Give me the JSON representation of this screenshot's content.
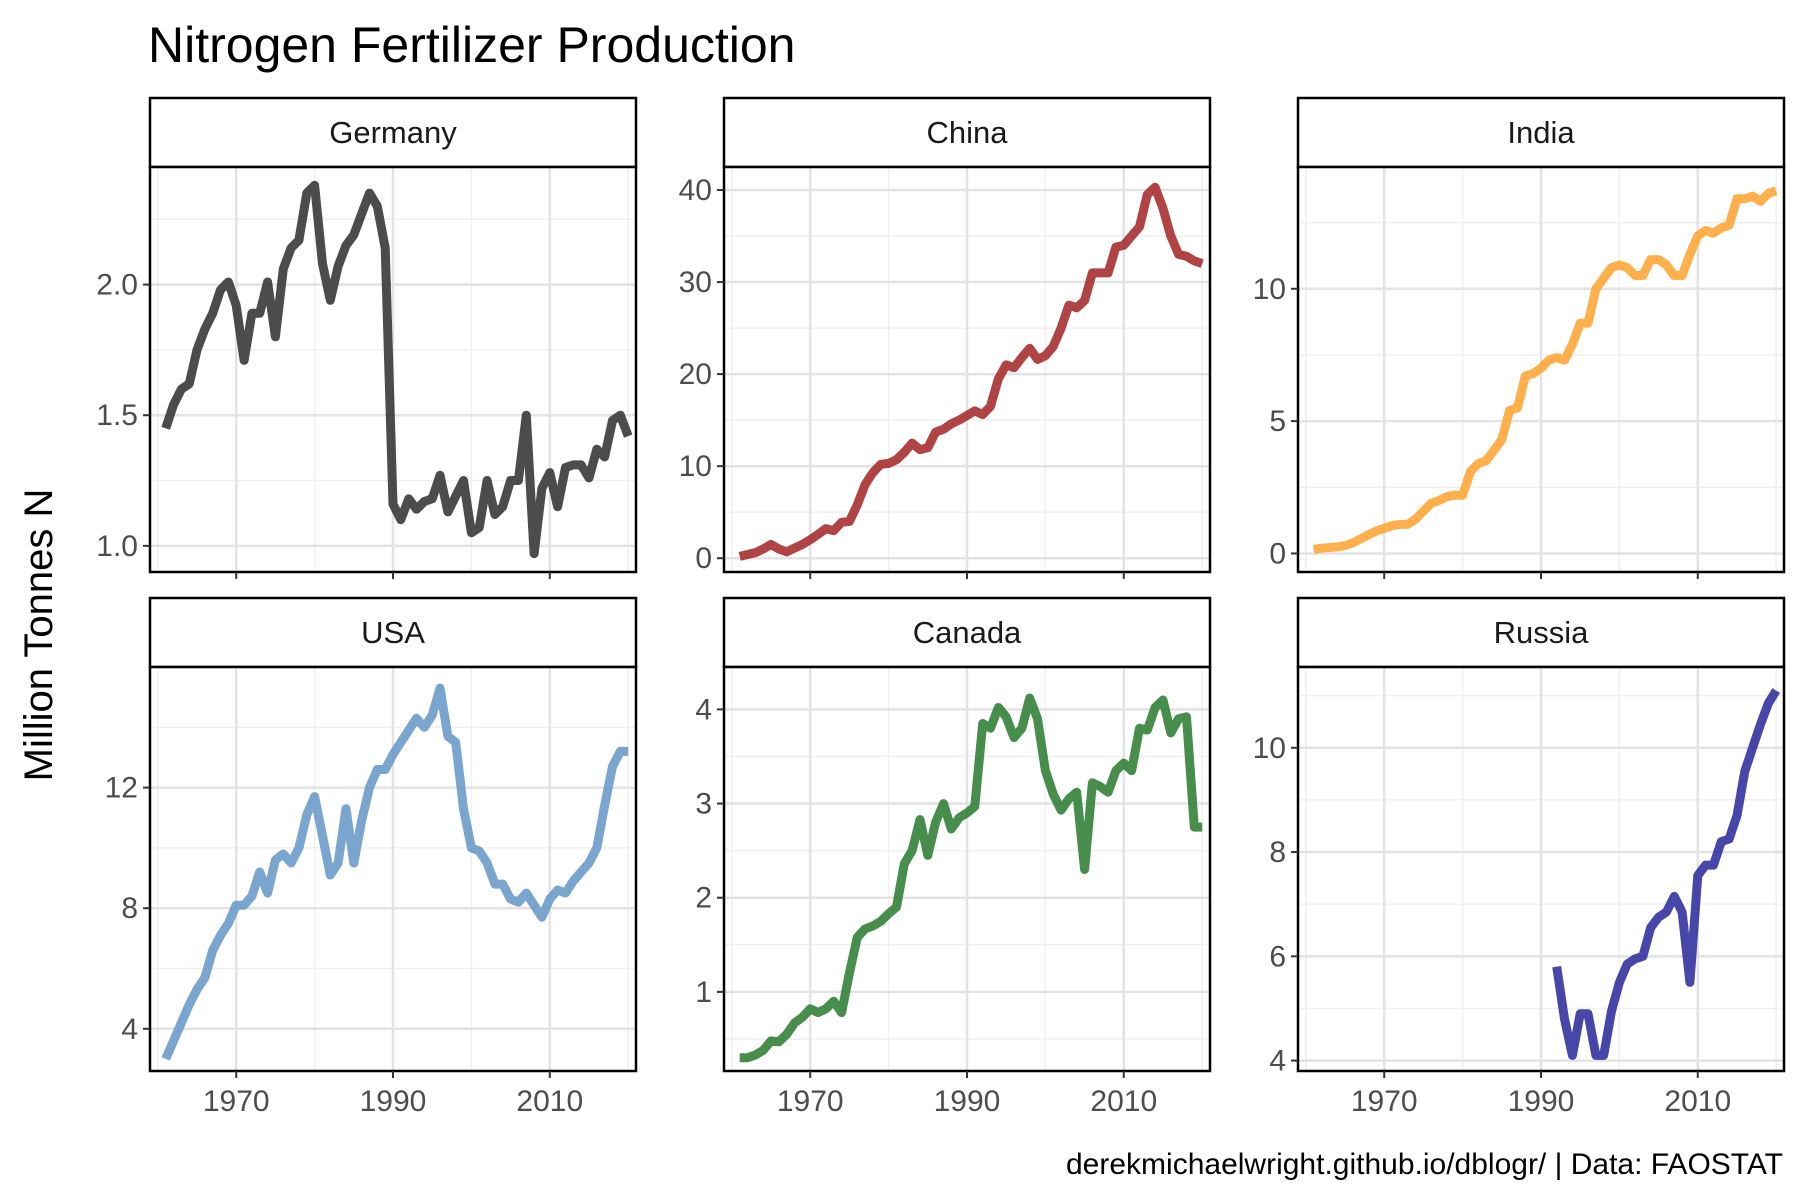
{
  "title": "Nitrogen Fertilizer Production",
  "ylabel": "Million Tonnes N",
  "caption": "derekmichaelwright.github.io/dblogr/ | Data: FAOSTAT",
  "chart_data": {
    "type": "line",
    "title": "Nitrogen Fertilizer Production",
    "ylabel": "Million Tonnes N",
    "xlabel": "",
    "xlim": [
      1959,
      2021
    ],
    "x_ticks": [
      1970,
      1990,
      2010
    ],
    "grid": true,
    "legend": "none",
    "panels": [
      {
        "name": "Germany",
        "color": "#333333",
        "ylim": [
          0.9,
          2.45
        ],
        "y_ticks": [
          1.0,
          1.5,
          2.0
        ],
        "y_tick_labels": [
          "1.0",
          "1.5",
          "2.0"
        ],
        "x": [
          1961,
          1962,
          1963,
          1964,
          1965,
          1966,
          1967,
          1968,
          1969,
          1970,
          1971,
          1972,
          1973,
          1974,
          1975,
          1976,
          1977,
          1978,
          1979,
          1980,
          1981,
          1982,
          1983,
          1984,
          1985,
          1986,
          1987,
          1988,
          1989,
          1990,
          1991,
          1992,
          1993,
          1994,
          1995,
          1996,
          1997,
          1998,
          1999,
          2000,
          2001,
          2002,
          2003,
          2004,
          2005,
          2006,
          2007,
          2008,
          2009,
          2010,
          2011,
          2012,
          2013,
          2014,
          2015,
          2016,
          2017,
          2018,
          2019,
          2020
        ],
        "values": [
          1.45,
          1.54,
          1.6,
          1.62,
          1.75,
          1.83,
          1.89,
          1.98,
          2.01,
          1.92,
          1.71,
          1.89,
          1.89,
          2.01,
          1.8,
          2.06,
          2.14,
          2.17,
          2.35,
          2.38,
          2.08,
          1.94,
          2.07,
          2.15,
          2.19,
          2.27,
          2.35,
          2.3,
          2.14,
          1.16,
          1.1,
          1.18,
          1.14,
          1.17,
          1.18,
          1.27,
          1.13,
          1.19,
          1.25,
          1.05,
          1.07,
          1.25,
          1.12,
          1.15,
          1.25,
          1.25,
          1.5,
          0.97,
          1.22,
          1.28,
          1.15,
          1.3,
          1.31,
          1.31,
          1.26,
          1.37,
          1.34,
          1.48,
          1.5,
          1.42
        ]
      },
      {
        "name": "China",
        "color": "#a52a2a",
        "ylim": [
          -1.5,
          42.5
        ],
        "y_ticks": [
          0,
          10,
          20,
          30,
          40
        ],
        "y_tick_labels": [
          "0",
          "10",
          "20",
          "30",
          "40"
        ],
        "x": [
          1961,
          1962,
          1963,
          1964,
          1965,
          1966,
          1967,
          1968,
          1969,
          1970,
          1971,
          1972,
          1973,
          1974,
          1975,
          1976,
          1977,
          1978,
          1979,
          1980,
          1981,
          1982,
          1983,
          1984,
          1985,
          1986,
          1987,
          1988,
          1989,
          1990,
          1991,
          1992,
          1993,
          1994,
          1995,
          1996,
          1997,
          1998,
          1999,
          2000,
          2001,
          2002,
          2003,
          2004,
          2005,
          2006,
          2007,
          2008,
          2009,
          2010,
          2011,
          2012,
          2013,
          2014,
          2015,
          2016,
          2017,
          2018,
          2019,
          2020
        ],
        "values": [
          0.2,
          0.4,
          0.6,
          1.0,
          1.5,
          1.0,
          0.7,
          1.1,
          1.5,
          2.0,
          2.6,
          3.2,
          3.0,
          3.9,
          4.0,
          5.8,
          8.0,
          9.3,
          10.2,
          10.3,
          10.7,
          11.5,
          12.5,
          11.8,
          12.0,
          13.7,
          14.0,
          14.6,
          15.0,
          15.5,
          16.0,
          15.6,
          16.5,
          19.5,
          21.0,
          20.7,
          21.8,
          22.8,
          21.6,
          22.0,
          23.0,
          25.0,
          27.5,
          27.2,
          28.0,
          31.0,
          31.0,
          31.0,
          33.8,
          34.0,
          35.0,
          36.0,
          39.5,
          40.3,
          38.0,
          35.0,
          33.0,
          32.8,
          32.3,
          32.0
        ]
      },
      {
        "name": "India",
        "color": "#ffa533",
        "ylim": [
          -0.7,
          14.6
        ],
        "y_ticks": [
          0,
          5,
          10
        ],
        "y_tick_labels": [
          "0",
          "5",
          "10"
        ],
        "x": [
          1961,
          1962,
          1963,
          1964,
          1965,
          1966,
          1967,
          1968,
          1969,
          1970,
          1971,
          1972,
          1973,
          1974,
          1975,
          1976,
          1977,
          1978,
          1979,
          1980,
          1981,
          1982,
          1983,
          1984,
          1985,
          1986,
          1987,
          1988,
          1989,
          1990,
          1991,
          1992,
          1993,
          1994,
          1995,
          1996,
          1997,
          1998,
          1999,
          2000,
          2001,
          2002,
          2003,
          2004,
          2005,
          2006,
          2007,
          2008,
          2009,
          2010,
          2011,
          2012,
          2013,
          2014,
          2015,
          2016,
          2017,
          2018,
          2019,
          2020
        ],
        "values": [
          0.15,
          0.2,
          0.22,
          0.25,
          0.3,
          0.4,
          0.55,
          0.7,
          0.85,
          0.95,
          1.05,
          1.1,
          1.1,
          1.3,
          1.6,
          1.9,
          2.0,
          2.15,
          2.2,
          2.2,
          3.1,
          3.4,
          3.5,
          3.9,
          4.3,
          5.4,
          5.5,
          6.7,
          6.8,
          7.0,
          7.3,
          7.4,
          7.3,
          7.9,
          8.7,
          8.7,
          10.0,
          10.4,
          10.8,
          10.9,
          10.8,
          10.5,
          10.5,
          11.1,
          11.1,
          10.9,
          10.5,
          10.5,
          11.3,
          12.0,
          12.2,
          12.1,
          12.3,
          12.4,
          13.4,
          13.4,
          13.5,
          13.3,
          13.6,
          13.7
        ]
      },
      {
        "name": "USA",
        "color": "#6699c8",
        "ylim": [
          2.6,
          16.0
        ],
        "y_ticks": [
          4,
          8,
          12
        ],
        "y_tick_labels": [
          "4",
          "8",
          "12"
        ],
        "x": [
          1961,
          1962,
          1963,
          1964,
          1965,
          1966,
          1967,
          1968,
          1969,
          1970,
          1971,
          1972,
          1973,
          1974,
          1975,
          1976,
          1977,
          1978,
          1979,
          1980,
          1981,
          1982,
          1983,
          1984,
          1985,
          1986,
          1987,
          1988,
          1989,
          1990,
          1991,
          1992,
          1993,
          1994,
          1995,
          1996,
          1997,
          1998,
          1999,
          2000,
          2001,
          2002,
          2003,
          2004,
          2005,
          2006,
          2007,
          2008,
          2009,
          2010,
          2011,
          2012,
          2013,
          2014,
          2015,
          2016,
          2017,
          2018,
          2019,
          2020
        ],
        "values": [
          3.0,
          3.6,
          4.2,
          4.8,
          5.3,
          5.7,
          6.6,
          7.1,
          7.5,
          8.1,
          8.1,
          8.4,
          9.2,
          8.5,
          9.6,
          9.8,
          9.5,
          10.0,
          11.1,
          11.7,
          10.4,
          9.1,
          9.5,
          11.3,
          9.5,
          10.9,
          12.0,
          12.6,
          12.6,
          13.1,
          13.5,
          13.9,
          14.3,
          14.0,
          14.4,
          15.3,
          13.7,
          13.5,
          11.3,
          10.0,
          9.9,
          9.5,
          8.8,
          8.8,
          8.3,
          8.2,
          8.5,
          8.1,
          7.7,
          8.3,
          8.6,
          8.5,
          8.9,
          9.2,
          9.5,
          10.0,
          11.4,
          12.7,
          13.2,
          13.2
        ]
      },
      {
        "name": "Canada",
        "color": "#2e7d32",
        "ylim": [
          0.16,
          4.45
        ],
        "y_ticks": [
          1,
          2,
          3,
          4
        ],
        "y_tick_labels": [
          "1",
          "2",
          "3",
          "4"
        ],
        "x": [
          1961,
          1962,
          1963,
          1964,
          1965,
          1966,
          1967,
          1968,
          1969,
          1970,
          1971,
          1972,
          1973,
          1974,
          1975,
          1976,
          1977,
          1978,
          1979,
          1980,
          1981,
          1982,
          1983,
          1984,
          1985,
          1986,
          1987,
          1988,
          1989,
          1990,
          1991,
          1992,
          1993,
          1994,
          1995,
          1996,
          1997,
          1998,
          1999,
          2000,
          2001,
          2002,
          2003,
          2004,
          2005,
          2006,
          2007,
          2008,
          2009,
          2010,
          2011,
          2012,
          2013,
          2014,
          2015,
          2016,
          2017,
          2018,
          2019,
          2020
        ],
        "values": [
          0.3,
          0.3,
          0.33,
          0.38,
          0.48,
          0.47,
          0.55,
          0.67,
          0.73,
          0.82,
          0.78,
          0.82,
          0.9,
          0.78,
          1.2,
          1.58,
          1.67,
          1.7,
          1.75,
          1.83,
          1.9,
          2.36,
          2.5,
          2.83,
          2.45,
          2.8,
          3.0,
          2.73,
          2.85,
          2.9,
          2.97,
          3.85,
          3.8,
          4.02,
          3.92,
          3.7,
          3.8,
          4.12,
          3.9,
          3.35,
          3.1,
          2.93,
          3.05,
          3.12,
          2.3,
          3.22,
          3.18,
          3.12,
          3.35,
          3.43,
          3.35,
          3.8,
          3.78,
          4.02,
          4.1,
          3.75,
          3.9,
          3.92,
          2.75,
          2.75
        ]
      },
      {
        "name": "Russia",
        "color": "#2e2e9e",
        "ylim": [
          3.8,
          11.55
        ],
        "y_ticks": [
          4,
          6,
          8,
          10
        ],
        "y_tick_labels": [
          "4",
          "6",
          "8",
          "10"
        ],
        "x": [
          1992,
          1993,
          1994,
          1995,
          1996,
          1997,
          1998,
          1999,
          2000,
          2001,
          2002,
          2003,
          2004,
          2005,
          2006,
          2007,
          2008,
          2009,
          2010,
          2011,
          2012,
          2013,
          2014,
          2015,
          2016,
          2017,
          2018,
          2019,
          2020
        ],
        "values": [
          5.8,
          4.8,
          4.1,
          4.9,
          4.9,
          4.1,
          4.1,
          4.95,
          5.5,
          5.85,
          5.95,
          6.0,
          6.55,
          6.75,
          6.85,
          7.15,
          6.85,
          5.5,
          7.55,
          7.75,
          7.75,
          8.2,
          8.25,
          8.7,
          9.55,
          10.0,
          10.45,
          10.85,
          11.1
        ]
      }
    ]
  }
}
